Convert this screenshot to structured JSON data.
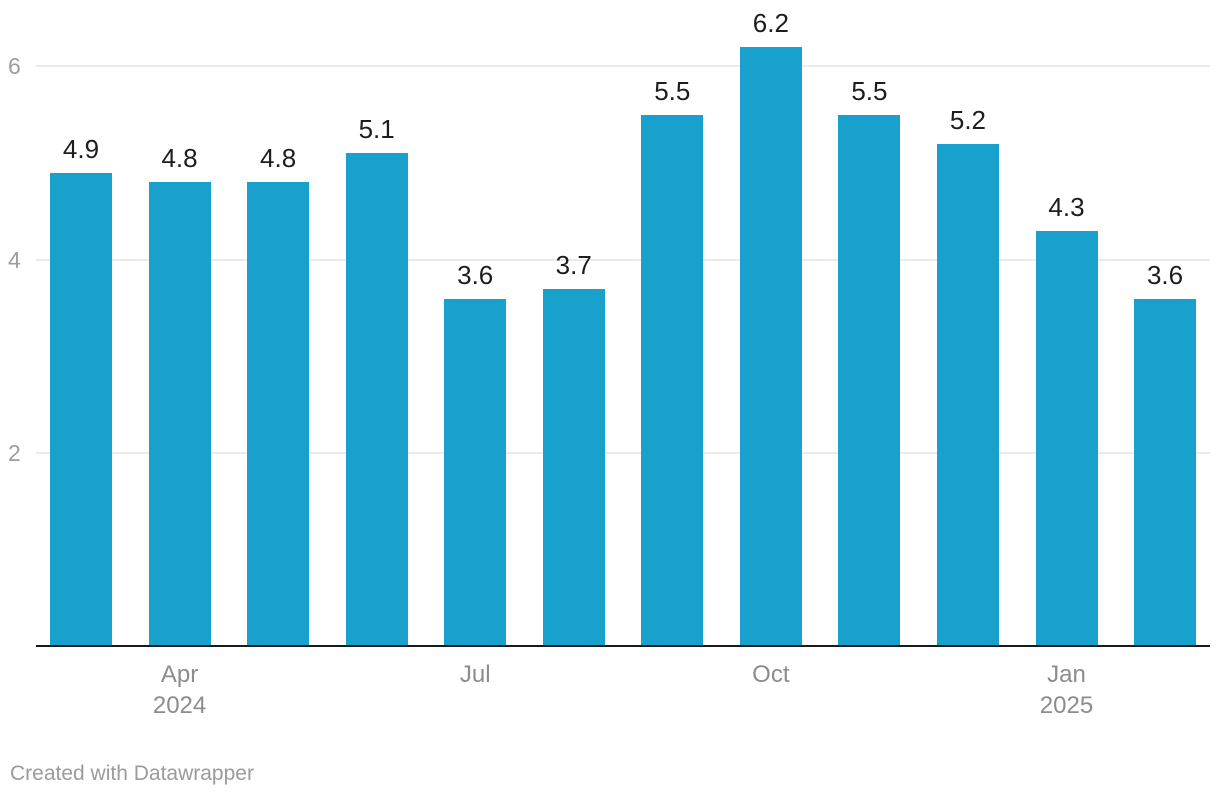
{
  "chart_data": {
    "type": "bar",
    "values": [
      4.9,
      4.8,
      4.8,
      5.1,
      3.6,
      3.7,
      5.5,
      6.2,
      5.5,
      5.2,
      4.3,
      3.6
    ],
    "bar_labels": [
      "4.9",
      "4.8",
      "4.8",
      "5.1",
      "3.6",
      "3.7",
      "5.5",
      "6.2",
      "5.5",
      "5.2",
      "4.3",
      "3.6"
    ],
    "x_ticks": [
      {
        "bar_index": 1,
        "lines": [
          "Apr",
          "2024"
        ]
      },
      {
        "bar_index": 4,
        "lines": [
          "Jul"
        ]
      },
      {
        "bar_index": 7,
        "lines": [
          "Oct"
        ]
      },
      {
        "bar_index": 10,
        "lines": [
          "Jan",
          "2025"
        ]
      }
    ],
    "y_ticks": [
      {
        "value": 2,
        "label": "2"
      },
      {
        "value": 4,
        "label": "4"
      },
      {
        "value": 6,
        "label": "6"
      }
    ],
    "ylim": [
      0,
      6.42
    ],
    "grid": true,
    "legend": "none",
    "title": "",
    "xlabel": "",
    "ylabel": ""
  },
  "colors": {
    "bar": "#18a1cd",
    "grid_line": "#ebebeb",
    "axis_line": "#1a1a1a",
    "tick_label": "#9d9d9d",
    "x_tick_label": "#8c8c8c",
    "value_label": "#1d1d1d",
    "credit": "#9b9b9b"
  },
  "footer": {
    "credit": "Created with Datawrapper"
  }
}
